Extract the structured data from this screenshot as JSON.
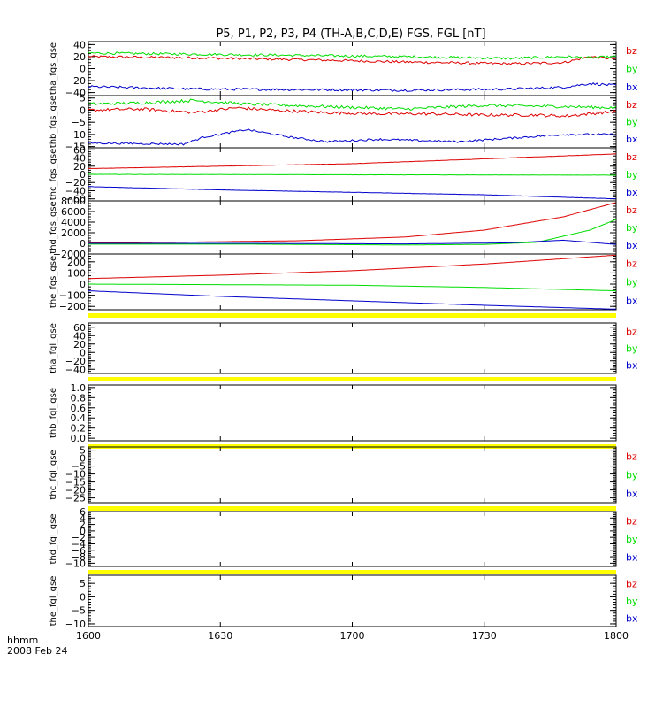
{
  "title": "P5, P1, P2, P3, P4 (TH-A,B,C,D,E) FGS, FGL [nT]",
  "footer": {
    "time_format": "hhmm",
    "date": "2008 Feb 24"
  },
  "colors": {
    "bz": "#dd0000",
    "by": "#00dd00",
    "bx": "#0000cc",
    "flag_bar": "#ffff00"
  },
  "chart_data": {
    "type": "line",
    "x_tick_labels": [
      "1600",
      "1630",
      "1700",
      "1730",
      "1800"
    ],
    "x_range": [
      "16:00",
      "18:00"
    ],
    "panels": [
      {
        "ylabel": "tha_fgs_gse",
        "ylim": [
          -45,
          45
        ],
        "ticks": [
          -40,
          -20,
          0,
          20,
          40
        ],
        "minor": 5,
        "has_data": true,
        "flag_bar": false,
        "legend": [
          "bz",
          "by",
          "bx"
        ],
        "series": [
          {
            "name": "bz",
            "x_frac": [
              0,
              0.2,
              0.4,
              0.6,
              0.8,
              0.9,
              0.95,
              1
            ],
            "values": [
              20,
              18,
              15,
              11,
              8,
              10,
              20,
              16
            ],
            "noise": 2
          },
          {
            "name": "by",
            "x_frac": [
              0,
              0.2,
              0.4,
              0.6,
              0.8,
              0.9,
              0.95,
              1
            ],
            "values": [
              26,
              24,
              22,
              20,
              17,
              20,
              18,
              20
            ],
            "noise": 2
          },
          {
            "name": "bx",
            "x_frac": [
              0,
              0.2,
              0.4,
              0.6,
              0.8,
              0.9,
              0.95,
              1
            ],
            "values": [
              -30,
              -34,
              -35,
              -36,
              -34,
              -31,
              -25,
              -28
            ],
            "noise": 2
          }
        ]
      },
      {
        "ylabel": "thb_fgs_gse",
        "ylim": [
          -15.5,
          6
        ],
        "ticks": [
          -15,
          -10,
          -5,
          0,
          5
        ],
        "minor": 1,
        "has_data": true,
        "flag_bar": false,
        "legend": [
          "bz",
          "by",
          "bx"
        ],
        "series": [
          {
            "name": "bz",
            "x_frac": [
              0,
              0.1,
              0.2,
              0.28,
              0.35,
              0.45,
              0.55,
              0.65,
              0.75,
              0.85,
              0.9,
              1
            ],
            "values": [
              0,
              0.5,
              -1,
              1,
              0,
              -1,
              -1.5,
              -1.5,
              -2,
              -2,
              -2.5,
              -0.5
            ],
            "noise": 0.6
          },
          {
            "name": "by",
            "x_frac": [
              0,
              0.1,
              0.2,
              0.3,
              0.45,
              0.6,
              0.75,
              0.9,
              1
            ],
            "values": [
              2.5,
              3,
              4,
              2.5,
              1.5,
              0.5,
              2,
              1.5,
              1
            ],
            "noise": 0.6
          },
          {
            "name": "bx",
            "x_frac": [
              0,
              0.18,
              0.22,
              0.3,
              0.38,
              0.45,
              0.55,
              0.7,
              0.9,
              1
            ],
            "values": [
              -13.5,
              -14,
              -11,
              -8,
              -11,
              -13,
              -12,
              -13,
              -10,
              -10
            ],
            "noise": 0.4
          }
        ]
      },
      {
        "ylabel": "thc_fgs_gse",
        "ylim": [
          -65,
          65
        ],
        "ticks": [
          -60,
          -40,
          -20,
          0,
          20,
          40,
          60
        ],
        "minor": 5,
        "has_data": true,
        "flag_bar": false,
        "legend": [
          "bz",
          "by",
          "bx"
        ],
        "series": [
          {
            "name": "bz",
            "x_frac": [
              0,
              0.25,
              0.5,
              0.75,
              1
            ],
            "values": [
              14,
              20,
              26,
              38,
              50
            ],
            "noise": 0.3
          },
          {
            "name": "by",
            "x_frac": [
              0,
              0.5,
              1
            ],
            "values": [
              0,
              -1,
              -2
            ],
            "noise": 0.3
          },
          {
            "name": "bx",
            "x_frac": [
              0,
              0.25,
              0.5,
              0.75,
              1
            ],
            "values": [
              -30,
              -38,
              -44,
              -50,
              -60
            ],
            "noise": 0.3
          }
        ]
      },
      {
        "ylabel": "thd_fgs_gse",
        "ylim": [
          -2000,
          8000
        ],
        "ticks": [
          -2000,
          0,
          2000,
          4000,
          6000,
          8000
        ],
        "minor": 500,
        "has_data": true,
        "flag_bar": false,
        "legend": [
          "bz",
          "by",
          "bx"
        ],
        "series": [
          {
            "name": "bz",
            "x_frac": [
              0,
              0.2,
              0.4,
              0.6,
              0.75,
              0.9,
              1
            ],
            "values": [
              100,
              250,
              500,
              1200,
              2500,
              5000,
              7700
            ],
            "noise": 0
          },
          {
            "name": "by",
            "x_frac": [
              0,
              0.3,
              0.6,
              0.75,
              0.85,
              0.95,
              1
            ],
            "values": [
              -150,
              -150,
              -300,
              -200,
              200,
              2500,
              4500
            ],
            "noise": 0
          },
          {
            "name": "bx",
            "x_frac": [
              0,
              0.3,
              0.6,
              0.8,
              0.9,
              0.95,
              1
            ],
            "values": [
              0,
              0,
              -100,
              100,
              600,
              200,
              -200
            ],
            "noise": 0
          }
        ]
      },
      {
        "ylabel": "the_fgs_gse",
        "ylim": [
          -230,
          270
        ],
        "ticks": [
          -200,
          -100,
          0,
          100,
          200
        ],
        "minor": 25,
        "has_data": true,
        "flag_bar": true,
        "legend": [
          "bz",
          "by",
          "bx"
        ],
        "series": [
          {
            "name": "bz",
            "x_frac": [
              0,
              0.25,
              0.5,
              0.75,
              1
            ],
            "values": [
              50,
              80,
              120,
              180,
              260
            ],
            "noise": 0
          },
          {
            "name": "by",
            "x_frac": [
              0,
              0.5,
              0.75,
              1
            ],
            "values": [
              0,
              -10,
              -30,
              -60
            ],
            "noise": 0
          },
          {
            "name": "bx",
            "x_frac": [
              0,
              0.25,
              0.5,
              0.75,
              1
            ],
            "values": [
              -60,
              -110,
              -150,
              -190,
              -225
            ],
            "noise": 0
          }
        ]
      },
      {
        "ylabel": "tha_fgl_gse",
        "ylim": [
          -50,
          70
        ],
        "ticks": [
          -40,
          -20,
          0,
          20,
          40,
          60
        ],
        "minor": 5,
        "has_data": false,
        "flag_bar": true,
        "legend": [
          "bz",
          "by",
          "bx"
        ],
        "series": []
      },
      {
        "ylabel": "thb_fgl_gse",
        "ylim": [
          -0.05,
          1.05
        ],
        "ticks": [
          0.0,
          0.2,
          0.4,
          0.6,
          0.8,
          1.0
        ],
        "tick_labels": [
          "0.0",
          "0.2",
          "0.4",
          "0.6",
          "0.8",
          "1.0"
        ],
        "minor": 0.05,
        "has_data": false,
        "flag_bar": true,
        "legend": [],
        "series": []
      },
      {
        "ylabel": "thc_fgl_gse",
        "ylim": [
          -28,
          7
        ],
        "ticks": [
          -25,
          -20,
          -15,
          -10,
          -5,
          0,
          5
        ],
        "minor": 1,
        "has_data": false,
        "flag_bar": true,
        "legend": [
          "bz",
          "by",
          "bx"
        ],
        "series": []
      },
      {
        "ylabel": "thd_fgl_gse",
        "ylim": [
          -11,
          6
        ],
        "ticks": [
          -10,
          -8,
          -6,
          -4,
          -2,
          0,
          2,
          4,
          6
        ],
        "minor": 0.5,
        "has_data": false,
        "flag_bar": true,
        "legend": [
          "bz",
          "by",
          "bx"
        ],
        "series": []
      },
      {
        "ylabel": "the_fgl_gse",
        "ylim": [
          -11,
          8
        ],
        "ticks": [
          -10,
          -5,
          0,
          5
        ],
        "minor": 1,
        "has_data": false,
        "flag_bar": false,
        "legend": [
          "bz",
          "by",
          "bx"
        ],
        "series": []
      }
    ]
  }
}
